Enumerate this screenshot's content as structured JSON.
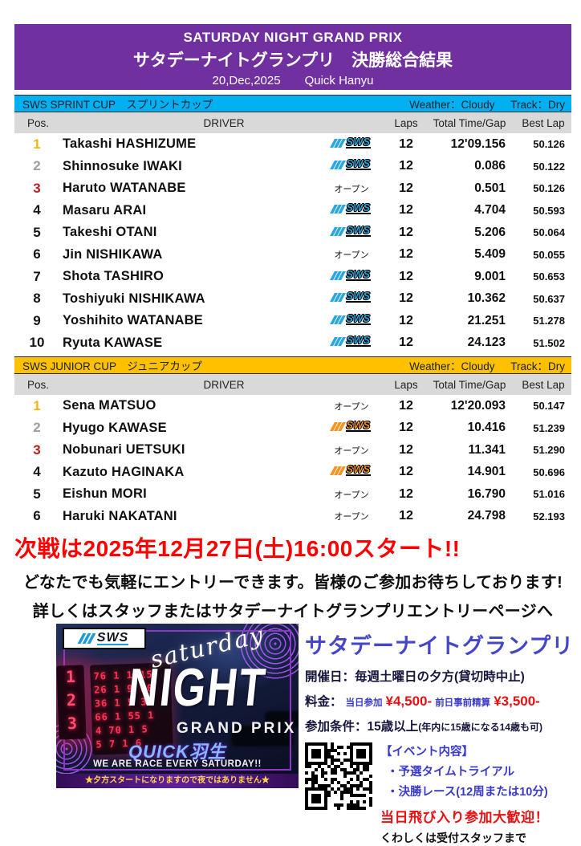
{
  "page": {
    "title_en": "SATURDAY NIGHT GRAND PRIX",
    "title_jp": "サタデーナイトグランプリ　決勝総合結果",
    "date": "20,Dec,2025",
    "venue": "Quick Hanyu"
  },
  "labels": {
    "pos": "Pos.",
    "driver": "DRIVER",
    "laps": "Laps",
    "total": "Total Time/Gap",
    "best": "Best Lap",
    "open_class": "オープン",
    "sws": "SWS"
  },
  "sections": [
    {
      "title": "SWS SPRINT CUP　スプリントカップ",
      "weather": "Weather：Cloudy",
      "track": "Track：Dry",
      "rows": [
        {
          "pos": "1",
          "driver": "Takashi HASHIZUME",
          "car_class": "sws",
          "laps": "12",
          "total": "12'09.156",
          "best": "50.126"
        },
        {
          "pos": "2",
          "driver": "Shinnosuke IWAKI",
          "car_class": "sws",
          "laps": "12",
          "total": "0.086",
          "best": "50.122"
        },
        {
          "pos": "3",
          "driver": "Haruto WATANABE",
          "car_class": "open",
          "laps": "12",
          "total": "0.501",
          "best": "50.126"
        },
        {
          "pos": "4",
          "driver": "Masaru ARAI",
          "car_class": "sws",
          "laps": "12",
          "total": "4.704",
          "best": "50.593"
        },
        {
          "pos": "5",
          "driver": "Takeshi OTANI",
          "car_class": "sws",
          "laps": "12",
          "total": "5.206",
          "best": "50.064"
        },
        {
          "pos": "6",
          "driver": "Jin NISHIKAWA",
          "car_class": "open",
          "laps": "12",
          "total": "5.409",
          "best": "50.055"
        },
        {
          "pos": "7",
          "driver": "Shota TASHIRO",
          "car_class": "sws",
          "laps": "12",
          "total": "9.001",
          "best": "50.653"
        },
        {
          "pos": "8",
          "driver": "Toshiyuki NISHIKAWA",
          "car_class": "sws",
          "laps": "12",
          "total": "10.362",
          "best": "50.637"
        },
        {
          "pos": "9",
          "driver": "Yoshihito WATANABE",
          "car_class": "sws",
          "laps": "12",
          "total": "21.251",
          "best": "51.278"
        },
        {
          "pos": "10",
          "driver": "Ryuta KAWASE",
          "car_class": "sws",
          "laps": "12",
          "total": "24.123",
          "best": "51.502"
        }
      ]
    },
    {
      "title": "SWS JUNIOR CUP　ジュニアカップ",
      "weather": "Weather：Cloudy",
      "track": "Track：Dry",
      "rows": [
        {
          "pos": "1",
          "driver": "Sena MATSUO",
          "car_class": "open",
          "laps": "12",
          "total": "12'20.093",
          "best": "50.147"
        },
        {
          "pos": "2",
          "driver": "Hyugo KAWASE",
          "car_class": "sws",
          "laps": "12",
          "total": "10.416",
          "best": "51.239"
        },
        {
          "pos": "3",
          "driver": "Nobunari UETSUKI",
          "car_class": "open",
          "laps": "12",
          "total": "11.341",
          "best": "51.290"
        },
        {
          "pos": "4",
          "driver": "Kazuto HAGINAKA",
          "car_class": "sws",
          "laps": "12",
          "total": "14.901",
          "best": "50.696"
        },
        {
          "pos": "5",
          "driver": "Eishun MORI",
          "car_class": "open",
          "laps": "12",
          "total": "16.790",
          "best": "51.016"
        },
        {
          "pos": "6",
          "driver": "Haruki NAKATANI",
          "car_class": "open",
          "laps": "12",
          "total": "24.798",
          "best": "52.193"
        }
      ]
    }
  ],
  "announcement": {
    "headline": "次戦は2025年12月27日(土)16:00スタート!!",
    "line1": "どなたでも気軽にエントリーできます。皆様のご参加お待ちしております!",
    "line2": "詳しくはスタッフまたはサタデーナイトグランプリエントリーページへ"
  },
  "promo": {
    "logo_text": "SWS",
    "script_word": "saturday",
    "night_word": "NIGHT",
    "grand_prix": "GRAND PRIX",
    "quick_brand": "QUICK羽生",
    "tagline": "WE ARE RACE EVERY SATURDAY!!",
    "note": "★夕方スタートになりますので夜ではありません★",
    "side_digits": "1\n2\n3",
    "led_lines": [
      "76 1 1 15",
      "26 1 9 10",
      "36 1 5 35",
      "66 1 55 1",
      "4 70 1 5",
      "5 7 1 6"
    ]
  },
  "info": {
    "title": "サタデーナイトグランプリ",
    "schedule": "開催日：毎週土曜日の夕方(貸切時中止)",
    "fee_label": "料金：",
    "fee_day_label": "当日参加",
    "fee_day": "¥4,500-",
    "fee_pre_label": "前日事前精算",
    "fee_pre": "¥3,500-",
    "condition": "参加条件：15歳以上",
    "condition_sub": "(年内に15歳になる14歳も可)",
    "event_header": "【イベント内容】",
    "event_item1": "・予選タイムトライアル",
    "event_item2": "・決勝レース(12周または10分)",
    "welcome": "当日飛び入り参加大歓迎！",
    "contact": "くわしくは受付スタッフまで"
  },
  "colors": {
    "banner_purple": "#7030A0",
    "sprint_cyan": "#00B0F0",
    "junior_amber": "#FFC000",
    "pos_gold": "#F2B50F",
    "pos_silver": "#9E9E9E",
    "pos_bronze": "#B42020",
    "accent_red": "#FE0000",
    "accent_blue": "#4646C8",
    "logo_blue": "#29A8E0",
    "logo_orange": "#F7941D"
  }
}
